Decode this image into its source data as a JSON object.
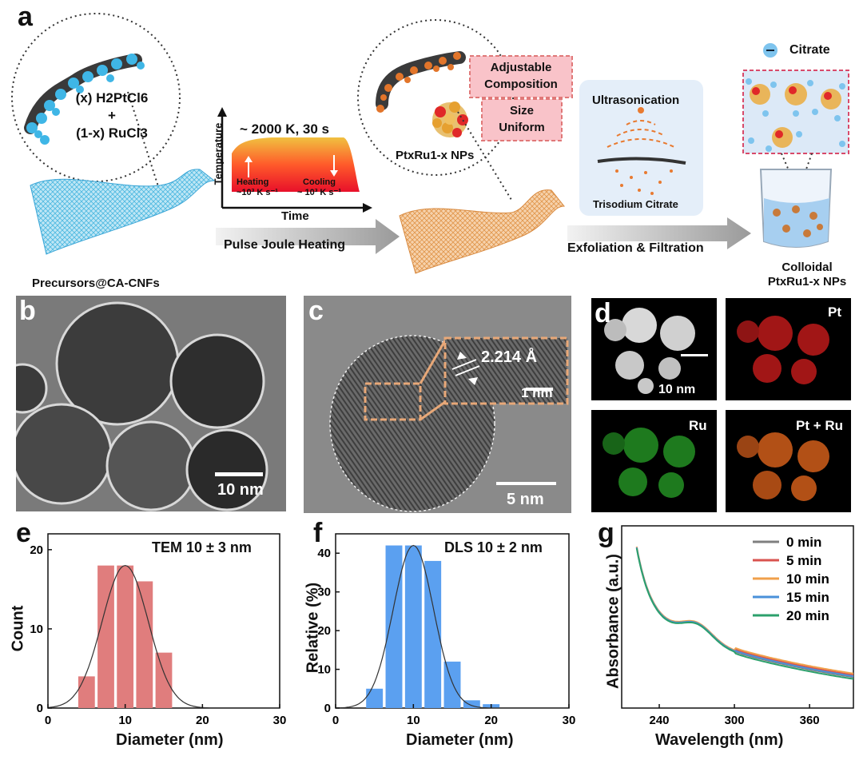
{
  "panel_a": {
    "label": "a",
    "precursor_line1": "(x) H2PtCl6",
    "precursor_plus": "+",
    "precursor_line2": "(1-x) RuCl3",
    "precursors_caption": "Precursors@CA-CNFs",
    "heat_title": "~ 2000 K,  30 s",
    "heat_ylabel": "Temperature",
    "heat_xlabel": "Time",
    "heating_label": "Heating",
    "heating_rate": "~10³ K s⁻¹",
    "cooling_label": "Cooling",
    "cooling_rate": "~ 10³ K s⁻¹",
    "step1_label": "Pulse Joule Heating",
    "box_adjustable": "Adjustable\nComposition",
    "box_size": "Size\nUniform",
    "nps_label": "PtxRu1-x NPs",
    "ultrasonication": "Ultrasonication",
    "trisodium": "Trisodium Citrate",
    "step2_label": "Exfoliation & Filtration",
    "citrate_legend": "Citrate",
    "colloidal_line1": "Colloidal",
    "colloidal_line2": "PtxRu1-x NPs"
  },
  "panel_b": {
    "label": "b",
    "scalebar": "10 nm"
  },
  "panel_c": {
    "label": "c",
    "lattice": "2.214 Å",
    "inset_scalebar": "1 nm",
    "scalebar": "5 nm"
  },
  "panel_d": {
    "label": "d",
    "scalebar": "10 nm",
    "pt": "Pt",
    "ru": "Ru",
    "ptru": "Pt + Ru"
  },
  "colors": {
    "pink_bar": "#e07d7d",
    "blue_bar": "#5ba0f0",
    "line0": "#7f7f7f",
    "line5": "#d9534f",
    "line10": "#f0a04b",
    "line15": "#4a90d9",
    "line20": "#2ca06c"
  },
  "chart_data": [
    {
      "panel": "e",
      "type": "bar",
      "annotation": "TEM  10 ± 3 nm",
      "xlabel": "Diameter (nm)",
      "ylabel": "Count",
      "xlim": [
        0,
        30
      ],
      "ylim": [
        0,
        22
      ],
      "xticks": [
        0,
        10,
        20,
        30
      ],
      "yticks": [
        0,
        10,
        20
      ],
      "bin_width": 2.5,
      "x": [
        5,
        7.5,
        10,
        12.5,
        15
      ],
      "values": [
        4,
        18,
        18,
        16,
        7
      ],
      "fit": {
        "type": "gaussian",
        "mean": 10,
        "sigma": 3,
        "peak": 18
      }
    },
    {
      "panel": "f",
      "type": "bar",
      "annotation": "DLS 10 ± 2 nm",
      "xlabel": "Diameter (nm)",
      "ylabel": "Relative (%)",
      "xlim": [
        0,
        30
      ],
      "ylim": [
        0,
        45
      ],
      "xticks": [
        0,
        10,
        20,
        30
      ],
      "yticks": [
        0,
        10,
        20,
        30,
        40
      ],
      "bin_width": 2.5,
      "x": [
        5,
        7.5,
        10,
        12.5,
        15,
        17.5,
        20,
        22.5
      ],
      "values": [
        5,
        42,
        42,
        38,
        12,
        2,
        1,
        0
      ],
      "fit": {
        "type": "gaussian",
        "mean": 10,
        "sigma": 2.6,
        "peak": 42
      }
    },
    {
      "panel": "g",
      "type": "line",
      "xlabel": "Wavelength (nm)",
      "ylabel": "Absorbance (a.u.)",
      "xlim": [
        210,
        395
      ],
      "xticks": [
        240,
        300,
        360
      ],
      "series": [
        {
          "name": "0 min",
          "color": "#7f7f7f"
        },
        {
          "name": "5 min",
          "color": "#d9534f"
        },
        {
          "name": "10 min",
          "color": "#f0a04b"
        },
        {
          "name": "15 min",
          "color": "#4a90d9"
        },
        {
          "name": "20 min",
          "color": "#2ca06c"
        }
      ]
    }
  ]
}
